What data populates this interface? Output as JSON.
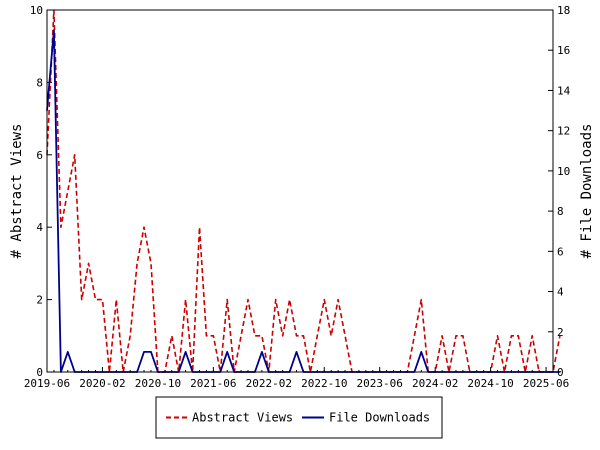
{
  "chart_data": {
    "type": "line",
    "x_tick_labels": [
      "2019-06",
      "2020-02",
      "2020-10",
      "2021-06",
      "2022-02",
      "2022-10",
      "2023-06",
      "2024-02",
      "2024-10",
      "2025-06"
    ],
    "x_start": "2019-06",
    "x_end": "2025-07",
    "ylabel_left": "# Abstract Views",
    "ylabel_right": "# File Downloads",
    "ylim_left": [
      0,
      10
    ],
    "ylim_right": [
      0,
      18
    ],
    "yticks_left": [
      0,
      2,
      4,
      6,
      8,
      10
    ],
    "yticks_right": [
      0,
      2,
      4,
      6,
      8,
      10,
      12,
      14,
      16,
      18
    ],
    "legend_position": "bottom-center",
    "series": [
      {
        "name": "Abstract Views",
        "axis": "left",
        "color": "#cc0000",
        "style": "dashed",
        "points": [
          [
            "2019-06",
            6
          ],
          [
            "2019-07",
            10
          ],
          [
            "2019-08",
            4
          ],
          [
            "2019-09",
            5
          ],
          [
            "2019-10",
            6
          ],
          [
            "2019-11",
            2
          ],
          [
            "2019-12",
            3
          ],
          [
            "2020-01",
            2
          ],
          [
            "2020-02",
            2
          ],
          [
            "2020-03",
            0
          ],
          [
            "2020-04",
            2
          ],
          [
            "2020-05",
            0
          ],
          [
            "2020-06",
            1
          ],
          [
            "2020-07",
            3
          ],
          [
            "2020-08",
            4
          ],
          [
            "2020-09",
            3
          ],
          [
            "2020-10",
            0
          ],
          [
            "2020-11",
            0
          ],
          [
            "2020-12",
            1
          ],
          [
            "2021-01",
            0
          ],
          [
            "2021-02",
            2
          ],
          [
            "2021-03",
            0
          ],
          [
            "2021-04",
            4
          ],
          [
            "2021-05",
            1
          ],
          [
            "2021-06",
            1
          ],
          [
            "2021-07",
            0
          ],
          [
            "2021-08",
            2
          ],
          [
            "2021-09",
            0
          ],
          [
            "2021-10",
            1
          ],
          [
            "2021-11",
            2
          ],
          [
            "2021-12",
            1
          ],
          [
            "2022-01",
            1
          ],
          [
            "2022-02",
            0
          ],
          [
            "2022-03",
            2
          ],
          [
            "2022-04",
            1
          ],
          [
            "2022-05",
            2
          ],
          [
            "2022-06",
            1
          ],
          [
            "2022-07",
            1
          ],
          [
            "2022-08",
            0
          ],
          [
            "2022-09",
            1
          ],
          [
            "2022-10",
            2
          ],
          [
            "2022-11",
            1
          ],
          [
            "2022-12",
            2
          ],
          [
            "2023-01",
            1
          ],
          [
            "2023-02",
            0
          ],
          [
            "2023-03",
            0
          ],
          [
            "2023-04",
            0
          ],
          [
            "2023-05",
            0
          ],
          [
            "2023-06",
            0
          ],
          [
            "2023-07",
            0
          ],
          [
            "2023-08",
            0
          ],
          [
            "2023-09",
            0
          ],
          [
            "2023-10",
            0
          ],
          [
            "2023-11",
            1
          ],
          [
            "2023-12",
            2
          ],
          [
            "2024-01",
            0
          ],
          [
            "2024-02",
            0
          ],
          [
            "2024-03",
            1
          ],
          [
            "2024-04",
            0
          ],
          [
            "2024-05",
            1
          ],
          [
            "2024-06",
            1
          ],
          [
            "2024-07",
            0
          ],
          [
            "2024-08",
            0
          ],
          [
            "2024-09",
            0
          ],
          [
            "2024-10",
            0
          ],
          [
            "2024-11",
            1
          ],
          [
            "2024-12",
            0
          ],
          [
            "2025-01",
            1
          ],
          [
            "2025-02",
            1
          ],
          [
            "2025-03",
            0
          ],
          [
            "2025-04",
            1
          ],
          [
            "2025-05",
            0
          ],
          [
            "2025-06",
            0
          ],
          [
            "2025-07",
            0
          ],
          [
            "2025-08",
            1
          ]
        ]
      },
      {
        "name": "File Downloads",
        "axis": "right",
        "color": "#00008b",
        "style": "solid",
        "points": [
          [
            "2019-06",
            13
          ],
          [
            "2019-07",
            17
          ],
          [
            "2019-08",
            0
          ],
          [
            "2019-09",
            1
          ],
          [
            "2019-10",
            0
          ],
          [
            "2019-11",
            0
          ],
          [
            "2019-12",
            0
          ],
          [
            "2020-01",
            0
          ],
          [
            "2020-02",
            0
          ],
          [
            "2020-03",
            0
          ],
          [
            "2020-04",
            0
          ],
          [
            "2020-05",
            0
          ],
          [
            "2020-06",
            0
          ],
          [
            "2020-07",
            0
          ],
          [
            "2020-08",
            1
          ],
          [
            "2020-09",
            1
          ],
          [
            "2020-10",
            0
          ],
          [
            "2020-11",
            0
          ],
          [
            "2020-12",
            0
          ],
          [
            "2021-01",
            0
          ],
          [
            "2021-02",
            1
          ],
          [
            "2021-03",
            0
          ],
          [
            "2021-04",
            0
          ],
          [
            "2021-05",
            0
          ],
          [
            "2021-06",
            0
          ],
          [
            "2021-07",
            0
          ],
          [
            "2021-08",
            1
          ],
          [
            "2021-09",
            0
          ],
          [
            "2021-10",
            0
          ],
          [
            "2021-11",
            0
          ],
          [
            "2021-12",
            0
          ],
          [
            "2022-01",
            1
          ],
          [
            "2022-02",
            0
          ],
          [
            "2022-03",
            0
          ],
          [
            "2022-04",
            0
          ],
          [
            "2022-05",
            0
          ],
          [
            "2022-06",
            1
          ],
          [
            "2022-07",
            0
          ],
          [
            "2022-08",
            0
          ],
          [
            "2022-09",
            0
          ],
          [
            "2022-10",
            0
          ],
          [
            "2022-11",
            0
          ],
          [
            "2022-12",
            0
          ],
          [
            "2023-01",
            0
          ],
          [
            "2023-02",
            0
          ],
          [
            "2023-03",
            0
          ],
          [
            "2023-04",
            0
          ],
          [
            "2023-05",
            0
          ],
          [
            "2023-06",
            0
          ],
          [
            "2023-07",
            0
          ],
          [
            "2023-08",
            0
          ],
          [
            "2023-09",
            0
          ],
          [
            "2023-10",
            0
          ],
          [
            "2023-11",
            0
          ],
          [
            "2023-12",
            1
          ],
          [
            "2024-01",
            0
          ],
          [
            "2024-02",
            0
          ],
          [
            "2024-03",
            0
          ],
          [
            "2024-04",
            0
          ],
          [
            "2024-05",
            0
          ],
          [
            "2024-06",
            0
          ],
          [
            "2024-07",
            0
          ],
          [
            "2024-08",
            0
          ],
          [
            "2024-09",
            0
          ],
          [
            "2024-10",
            0
          ],
          [
            "2024-11",
            0
          ],
          [
            "2024-12",
            0
          ],
          [
            "2025-01",
            0
          ],
          [
            "2025-02",
            0
          ],
          [
            "2025-03",
            0
          ],
          [
            "2025-04",
            0
          ],
          [
            "2025-05",
            0
          ],
          [
            "2025-06",
            0
          ],
          [
            "2025-07",
            0
          ],
          [
            "2025-08",
            0
          ]
        ]
      }
    ]
  },
  "legend": {
    "items": [
      {
        "label": "Abstract Views",
        "color": "#cc0000",
        "style": "dashed"
      },
      {
        "label": "File Downloads",
        "color": "#00008b",
        "style": "solid"
      }
    ]
  }
}
